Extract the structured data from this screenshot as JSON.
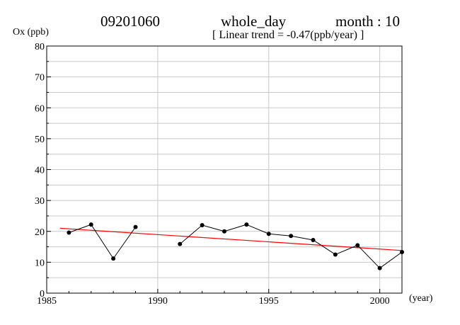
{
  "header": {
    "station": "09201060",
    "period": "whole_day",
    "month": "month : 10",
    "trend": "[ Linear trend = -0.47(ppb/year) ]"
  },
  "chart_data": {
    "type": "line",
    "xlabel": "(year)",
    "ylabel": "Ox (ppb)",
    "xlim": [
      1985,
      2001
    ],
    "ylim": [
      0,
      80
    ],
    "x_ticks": [
      1985,
      1990,
      1995,
      2000
    ],
    "y_ticks": [
      0,
      10,
      20,
      30,
      40,
      50,
      60,
      70,
      80
    ],
    "y_minor_step": 5,
    "grid": true,
    "series": [
      {
        "points": [
          [
            1986,
            19.6
          ],
          [
            1987,
            22.2
          ],
          [
            1988,
            11.2
          ],
          [
            1989,
            21.4
          ],
          [
            1991,
            15.9
          ],
          [
            1992,
            22.0
          ],
          [
            1993,
            20.0
          ],
          [
            1994,
            22.2
          ],
          [
            1995,
            19.2
          ],
          [
            1996,
            18.5
          ],
          [
            1997,
            17.2
          ],
          [
            1998,
            12.5
          ],
          [
            1999,
            15.5
          ],
          [
            2000,
            8.1
          ],
          [
            2001,
            13.3
          ]
        ],
        "color": "#000000"
      }
    ],
    "trend_line": {
      "slope": -0.47,
      "points": [
        [
          1985.6,
          21.0
        ],
        [
          2001,
          13.8
        ]
      ],
      "color": "#ff0000"
    }
  }
}
